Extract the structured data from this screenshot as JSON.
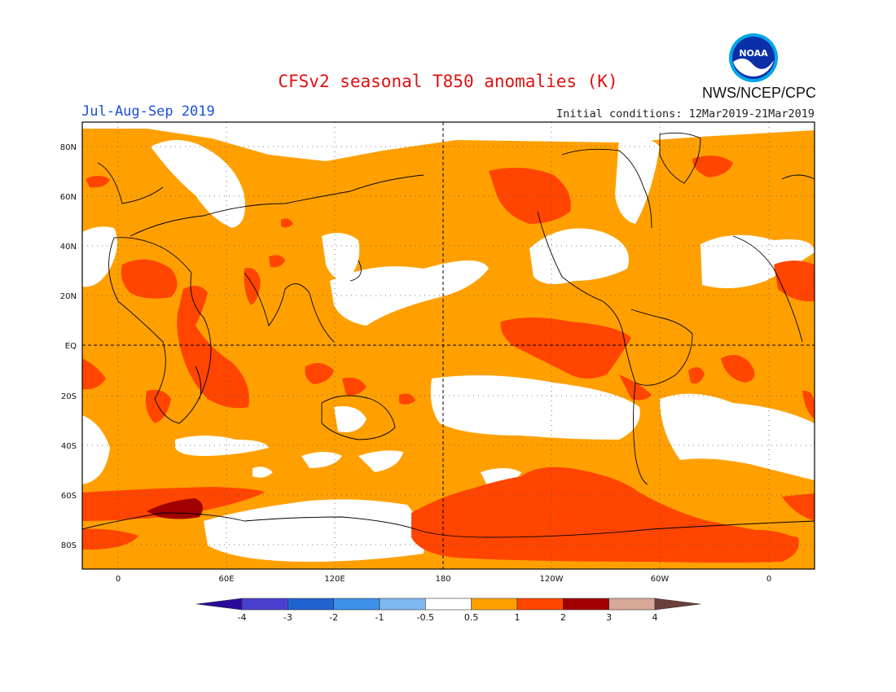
{
  "title": "CFSv2 seasonal T850 anomalies (K)",
  "season": "Jul-Aug-Sep 2019",
  "initial_conditions": "Initial conditions: 12Mar2019-21Mar2019",
  "agency": "NWS/NCEP/CPC",
  "logo_text": "NOAA",
  "lat_ticks": [
    "80N",
    "60N",
    "40N",
    "20N",
    "EQ",
    "20S",
    "40S",
    "60S",
    "80S"
  ],
  "lon_ticks": [
    "0",
    "60E",
    "120E",
    "180",
    "120W",
    "60W",
    "0"
  ],
  "colorbar": {
    "labels": [
      "-4",
      "-3",
      "-2",
      "-1",
      "-0.5",
      "0.5",
      "1",
      "2",
      "3",
      "4"
    ],
    "colors": [
      "#2a0a9a",
      "#4a3fcf",
      "#1f63d1",
      "#3d8fe8",
      "#80b8f0",
      "#ffffff",
      "#ffa000",
      "#ff4500",
      "#a00000",
      "#d8a898",
      "#6a3f3a"
    ]
  },
  "colors": {
    "weak": "#ffa000",
    "moderate": "#ff4500",
    "strong": "#a00000",
    "neutral": "#ffffff"
  }
}
